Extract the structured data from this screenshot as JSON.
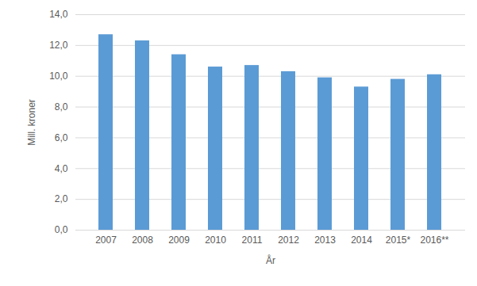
{
  "chart_data": {
    "type": "bar",
    "x_label": "År",
    "y_label": "Mill. kroner",
    "categories": [
      "2007",
      "2008",
      "2009",
      "2010",
      "2011",
      "2012",
      "2013",
      "2014",
      "2015*",
      "2016**"
    ],
    "values": [
      12.7,
      12.3,
      11.4,
      10.6,
      10.7,
      10.3,
      9.9,
      9.3,
      9.8,
      10.1
    ],
    "color": "#5b9bd5",
    "ylim": [
      0,
      14
    ],
    "yticks": [
      {
        "value": 0,
        "label": "0,0"
      },
      {
        "value": 2,
        "label": "2,0"
      },
      {
        "value": 4,
        "label": "4,0"
      },
      {
        "value": 6,
        "label": "6,0"
      },
      {
        "value": 8,
        "label": "8,0"
      },
      {
        "value": 10,
        "label": "10,0"
      },
      {
        "value": 12,
        "label": "12,0"
      },
      {
        "value": 14,
        "label": "14,0"
      }
    ],
    "grid": true
  }
}
